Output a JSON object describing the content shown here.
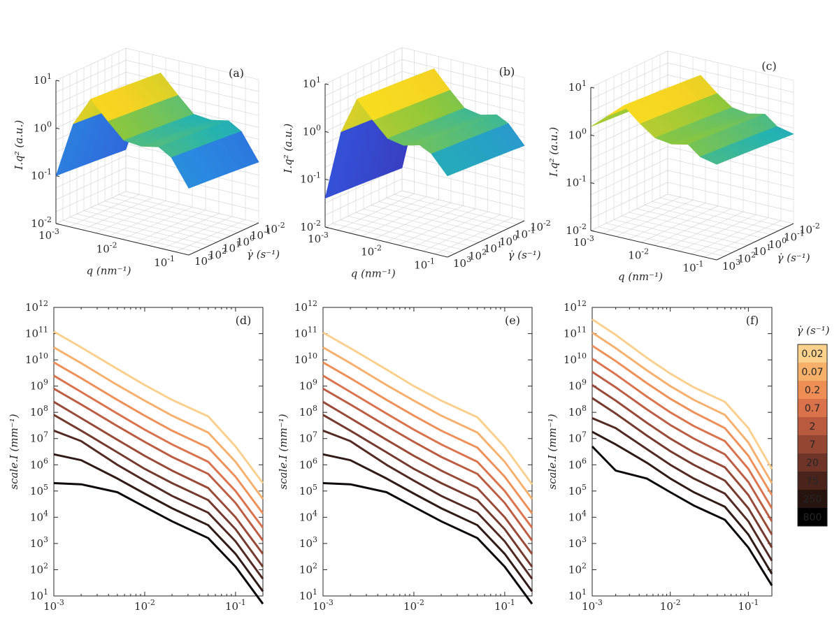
{
  "chart_data": [
    {
      "panel": "(a)",
      "type": "surface",
      "xlabel": "q (nm⁻¹)",
      "ylabel": "γ̇ (s⁻¹)",
      "zlabel": "I.q² (a.u.)",
      "x_range": [
        0.001,
        0.2
      ],
      "y_range": [
        0.01,
        1000
      ],
      "z_range": [
        0.01,
        10
      ],
      "x_ticks": [
        "10",
        "10",
        "10"
      ],
      "x_tick_exp": [
        "-3",
        "-2",
        "-1"
      ],
      "y_ticks": [
        "10",
        "10",
        "10",
        "10",
        "10",
        "10"
      ],
      "y_tick_exp": [
        "-2",
        "-1",
        "0",
        "1",
        "2",
        "3"
      ],
      "z_ticks": [
        "10",
        "10",
        "10",
        "10"
      ],
      "z_tick_exp": [
        "-2",
        "-1",
        "0",
        "1"
      ],
      "ridge_q": [
        0.001,
        0.002,
        0.004,
        0.008,
        0.015,
        0.03,
        0.06,
        0.1,
        0.2
      ],
      "ridge_Iq2": [
        0.1,
        1.5,
        6,
        2.5,
        1.2,
        1.1,
        1.3,
        0.9,
        0.25
      ]
    },
    {
      "panel": "(b)",
      "type": "surface",
      "xlabel": "q (nm⁻¹)",
      "ylabel": "γ̇ (s⁻¹)",
      "zlabel": "I.q² (a.u.)",
      "x_range": [
        0.001,
        0.2
      ],
      "y_range": [
        0.01,
        1000
      ],
      "z_range": [
        0.01,
        10
      ],
      "ridge_q": [
        0.001,
        0.002,
        0.004,
        0.008,
        0.015,
        0.03,
        0.06,
        0.1,
        0.2
      ],
      "ridge_Iq2": [
        0.04,
        1.2,
        7,
        3,
        1.5,
        1.3,
        1.6,
        1.2,
        0.5
      ]
    },
    {
      "panel": "(c)",
      "type": "surface",
      "xlabel": "q (nm⁻¹)",
      "ylabel": "γ̇ (s⁻¹)",
      "zlabel": "I.q² (a.u.)",
      "x_range": [
        0.001,
        0.2
      ],
      "y_range": [
        0.01,
        1000
      ],
      "z_range": [
        0.01,
        10
      ],
      "ridge_q": [
        0.001,
        0.002,
        0.004,
        0.008,
        0.015,
        0.03,
        0.06,
        0.1,
        0.2
      ],
      "ridge_Iq2": [
        1.5,
        3,
        6,
        3,
        1.8,
        1.6,
        1.9,
        1.2,
        1.0
      ]
    },
    {
      "panel": "(d)",
      "type": "line",
      "xscale": "log",
      "yscale": "log",
      "xlabel": "q (nm⁻¹)",
      "ylabel": "scale.I (mm⁻¹)",
      "xlim": [
        0.001,
        0.2
      ],
      "ylim": [
        10,
        1000000000000
      ],
      "x": [
        0.001,
        0.002,
        0.005,
        0.01,
        0.02,
        0.05,
        0.1,
        0.2
      ],
      "series": [
        {
          "name": "0.02",
          "values": [
            120000000000,
            30000000000,
            4500000000,
            1100000000,
            300000000,
            70000000,
            5000000,
            200000
          ]
        },
        {
          "name": "0.07",
          "values": [
            30000000000,
            7500000000,
            1100000000,
            280000000,
            75000000,
            17000000,
            1300000,
            50000
          ]
        },
        {
          "name": "0.2",
          "values": [
            8000000000,
            2000000000,
            300000000,
            75000000,
            20000000,
            4500000,
            350000,
            14000
          ]
        },
        {
          "name": "0.7",
          "values": [
            2500000000,
            600000000,
            90000000,
            22000000,
            6000000,
            1300000,
            100000,
            4000
          ]
        },
        {
          "name": "2",
          "values": [
            800000000,
            200000000,
            30000000,
            7500000,
            2000000,
            450000,
            35000,
            1300
          ]
        },
        {
          "name": "7",
          "values": [
            250000000,
            60000000,
            9000000,
            2200000,
            600000,
            130000,
            10000,
            400
          ]
        },
        {
          "name": "20",
          "values": [
            80000000,
            20000000,
            3000000,
            700000,
            200000,
            45000,
            3500,
            130
          ]
        },
        {
          "name": "75",
          "values": [
            20000000,
            8000000,
            1000000,
            250000,
            65000,
            15000,
            1200,
            45
          ]
        },
        {
          "name": "250",
          "values": [
            2500000,
            1500000,
            300000,
            80000,
            22000,
            5000,
            400,
            15
          ]
        },
        {
          "name": "800",
          "values": [
            200000,
            180000,
            90000,
            25000,
            7000,
            1600,
            130,
            5
          ]
        }
      ]
    },
    {
      "panel": "(e)",
      "type": "line",
      "xscale": "log",
      "yscale": "log",
      "xlabel": "q (nm⁻¹)",
      "ylabel": "scale.I (mm⁻¹)",
      "xlim": [
        0.001,
        0.2
      ],
      "ylim": [
        10,
        1000000000000
      ],
      "x": [
        0.001,
        0.002,
        0.005,
        0.01,
        0.02,
        0.05,
        0.1,
        0.2
      ],
      "series": [
        {
          "name": "0.02",
          "values": [
            110000000000,
            28000000000,
            4300000000,
            1000000000,
            280000000,
            65000000,
            4800000,
            180000
          ]
        },
        {
          "name": "0.07",
          "values": [
            30000000000,
            7500000000,
            1100000000,
            280000000,
            75000000,
            17000000,
            1300000,
            50000
          ]
        },
        {
          "name": "0.2",
          "values": [
            8000000000,
            2000000000,
            300000000,
            75000000,
            20000000,
            4500000,
            350000,
            14000
          ]
        },
        {
          "name": "0.7",
          "values": [
            2500000000,
            600000000,
            90000000,
            22000000,
            6000000,
            1300000,
            100000,
            4000
          ]
        },
        {
          "name": "2",
          "values": [
            800000000,
            200000000,
            30000000,
            7500000,
            2000000,
            450000,
            35000,
            1300
          ]
        },
        {
          "name": "7",
          "values": [
            250000000,
            60000000,
            9000000,
            2200000,
            600000,
            130000,
            10000,
            400
          ]
        },
        {
          "name": "20",
          "values": [
            80000000,
            20000000,
            3000000,
            700000,
            200000,
            45000,
            3500,
            130
          ]
        },
        {
          "name": "75",
          "values": [
            20000000,
            8000000,
            1000000,
            250000,
            65000,
            15000,
            1200,
            45
          ]
        },
        {
          "name": "250",
          "values": [
            2500000,
            1500000,
            300000,
            80000,
            22000,
            5000,
            400,
            15
          ]
        },
        {
          "name": "800",
          "values": [
            200000,
            180000,
            90000,
            25000,
            7000,
            1600,
            130,
            5
          ]
        }
      ]
    },
    {
      "panel": "(f)",
      "type": "line",
      "xscale": "log",
      "yscale": "log",
      "xlabel": "q (nm⁻¹)",
      "ylabel": "scale.I (mm⁻¹)",
      "xlim": [
        0.001,
        0.2
      ],
      "ylim": [
        10,
        1000000000000
      ],
      "x": [
        0.001,
        0.002,
        0.005,
        0.01,
        0.02,
        0.05,
        0.1,
        0.2
      ],
      "series": [
        {
          "name": "0.02",
          "values": [
            350000000000,
            90000000000,
            12000000000,
            3000000000,
            900000000,
            250000000,
            25000000,
            700000
          ]
        },
        {
          "name": "0.07",
          "values": [
            110000000000,
            28000000000,
            4000000000,
            1000000000,
            300000000,
            80000000,
            7000000,
            200000
          ]
        },
        {
          "name": "0.2",
          "values": [
            35000000000,
            9000000000,
            1300000000,
            330000000,
            100000000,
            25000000,
            2200000,
            70000
          ]
        },
        {
          "name": "0.7",
          "values": [
            11000000000,
            2800000000,
            400000000,
            100000000,
            30000000,
            8000000,
            700000,
            22000
          ]
        },
        {
          "name": "2",
          "values": [
            3500000000,
            900000000,
            130000000,
            33000000,
            10000000,
            2500000,
            220000,
            7000
          ]
        },
        {
          "name": "7",
          "values": [
            1100000000,
            280000000,
            40000000,
            10000000,
            3000000,
            800000,
            70000,
            2200
          ]
        },
        {
          "name": "20",
          "values": [
            350000000,
            90000000,
            13000000,
            3300000,
            1000000,
            250000,
            22000,
            700
          ]
        },
        {
          "name": "75",
          "values": [
            60000000,
            25000000,
            4000000,
            1000000,
            300000,
            80000,
            7000,
            220
          ]
        },
        {
          "name": "250",
          "values": [
            18000000,
            6000000,
            1200000,
            300000,
            90000,
            25000,
            2200,
            70
          ]
        },
        {
          "name": "800",
          "values": [
            5000000,
            600000,
            300000,
            90000,
            28000,
            8000,
            700,
            25
          ]
        }
      ]
    }
  ],
  "colorbar": {
    "title": "γ̇ (s⁻¹)",
    "labels": [
      "0.02",
      "0.07",
      "0.2",
      "0.7",
      "2",
      "7",
      "20",
      "75",
      "250",
      "800"
    ],
    "colors": [
      "#fbd18c",
      "#f7b06a",
      "#ee8e55",
      "#d9714a",
      "#b95a3e",
      "#944632",
      "#6e3427",
      "#4a231b",
      "#26130e",
      "#000000"
    ]
  },
  "surface_colors": [
    "#3e27a3",
    "#3451d8",
    "#2a89e0",
    "#25b3b0",
    "#8fc83a",
    "#f5d322",
    "#fbee1b"
  ]
}
